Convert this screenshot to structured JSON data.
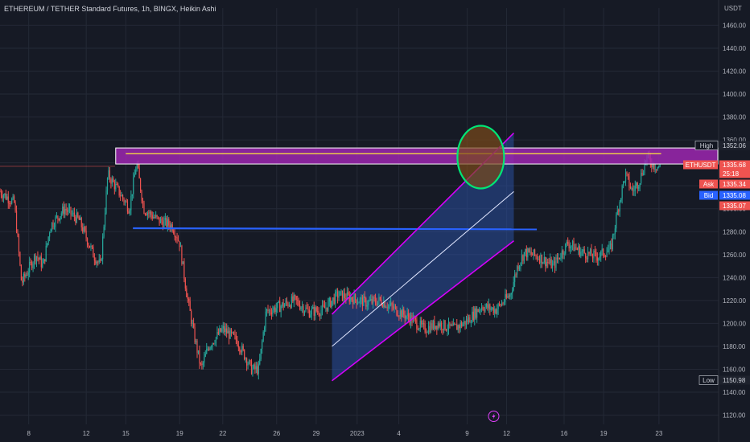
{
  "header": {
    "title": "ETHEREUM / TETHER Standard Futures, 1h, BINGX, Heikin Ashi",
    "currency": "USDT"
  },
  "colors": {
    "background": "#161a25",
    "grid": "#242936",
    "up": "#26a69a",
    "down": "#ef5350",
    "resistance_zone_fill": "#9c27b0",
    "resistance_zone_border": "#ffffff",
    "resistance_line": "#ffeb3b",
    "support_line": "#2962ff",
    "channel_border": "#d500f9",
    "channel_fill": "#2a4e9e",
    "highlight_circle": "#00e676",
    "highlight_fill": "#7a4a1a"
  },
  "chart_data": {
    "type": "candlestick",
    "title": "ETHEREUM / TETHER Standard Futures, 1h, BINGX, Heikin Ashi",
    "style": "Heikin Ashi",
    "y_axis": {
      "unit": "USDT",
      "ticks": [
        1120,
        1140,
        1160,
        1180,
        1200,
        1220,
        1240,
        1260,
        1280,
        1300,
        1320,
        1340,
        1360,
        1380,
        1400,
        1420,
        1440,
        1460
      ],
      "tick_labels": [
        "1120.00",
        "1140.00",
        "1160.00",
        "1180.00",
        "1200.00",
        "1220.00",
        "1240.00",
        "1260.00",
        "1280.00",
        "1300.00",
        "1320.00",
        "1340.00",
        "1360.00",
        "1380.00",
        "1400.00",
        "1420.00",
        "1440.00",
        "1460.00"
      ],
      "range": [
        1112,
        1475
      ]
    },
    "x_axis": {
      "tick_labels": [
        "8",
        "12",
        "15",
        "19",
        "22",
        "26",
        "29",
        "2023",
        "4",
        "9",
        "12",
        "16",
        "19",
        "23"
      ]
    },
    "grid": true,
    "price_labels": [
      {
        "name": "High",
        "value": "1352.06"
      },
      {
        "name": "ETHUSDT",
        "value": "1335.68"
      },
      {
        "name": "",
        "value": "25:18"
      },
      {
        "name": "Ask",
        "value": "1335.34"
      },
      {
        "name": "Bid",
        "value": "1335.08"
      },
      {
        "name": "",
        "value": "1335.07"
      },
      {
        "name": "Low",
        "value": "1150.98"
      }
    ],
    "high": 1352.06,
    "low": 1150.98,
    "last": 1335.68,
    "ask": 1335.34,
    "bid": 1335.08,
    "countdown": "25:18",
    "price_path": [
      [
        0,
        1315
      ],
      [
        0.02,
        1305
      ],
      [
        0.03,
        1235
      ],
      [
        0.05,
        1260
      ],
      [
        0.06,
        1250
      ],
      [
        0.07,
        1285
      ],
      [
        0.09,
        1300
      ],
      [
        0.11,
        1290
      ],
      [
        0.13,
        1260
      ],
      [
        0.14,
        1250
      ],
      [
        0.15,
        1330
      ],
      [
        0.16,
        1320
      ],
      [
        0.18,
        1300
      ],
      [
        0.19,
        1340
      ],
      [
        0.2,
        1300
      ],
      [
        0.22,
        1290
      ],
      [
        0.24,
        1285
      ],
      [
        0.25,
        1270
      ],
      [
        0.26,
        1225
      ],
      [
        0.27,
        1190
      ],
      [
        0.28,
        1160
      ],
      [
        0.29,
        1180
      ],
      [
        0.31,
        1195
      ],
      [
        0.33,
        1185
      ],
      [
        0.35,
        1160
      ],
      [
        0.36,
        1160
      ],
      [
        0.37,
        1210
      ],
      [
        0.39,
        1215
      ],
      [
        0.41,
        1220
      ],
      [
        0.43,
        1210
      ],
      [
        0.45,
        1212
      ],
      [
        0.47,
        1225
      ],
      [
        0.49,
        1222
      ],
      [
        0.51,
        1218
      ],
      [
        0.53,
        1220
      ],
      [
        0.55,
        1212
      ],
      [
        0.57,
        1205
      ],
      [
        0.59,
        1195
      ],
      [
        0.61,
        1200
      ],
      [
        0.63,
        1195
      ],
      [
        0.65,
        1202
      ],
      [
        0.67,
        1215
      ],
      [
        0.69,
        1212
      ],
      [
        0.71,
        1225
      ],
      [
        0.72,
        1250
      ],
      [
        0.73,
        1262
      ],
      [
        0.75,
        1258
      ],
      [
        0.77,
        1250
      ],
      [
        0.79,
        1270
      ],
      [
        0.81,
        1262
      ],
      [
        0.83,
        1258
      ],
      [
        0.85,
        1265
      ],
      [
        0.86,
        1300
      ],
      [
        0.87,
        1330
      ],
      [
        0.88,
        1315
      ],
      [
        0.89,
        1325
      ],
      [
        0.9,
        1345
      ],
      [
        0.91,
        1338
      ],
      [
        0.92,
        1336
      ]
    ],
    "overlays": [
      {
        "type": "rectangle",
        "name": "resistance zone",
        "y_range": [
          1339,
          1353
        ]
      },
      {
        "type": "hline",
        "name": "resistance line",
        "value": 1348
      },
      {
        "type": "hline",
        "name": "previous high level",
        "value": 1337
      },
      {
        "type": "hline",
        "name": "support line",
        "value": 1283
      },
      {
        "type": "parallel_channel",
        "name": "rising channel",
        "start": {
          "lower": 1150,
          "middle": 1180,
          "upper": 1208
        },
        "end": {
          "lower": 1272,
          "middle": 1315,
          "upper": 1366
        }
      },
      {
        "type": "ellipse",
        "name": "breakout highlight circle",
        "center_value": 1345
      },
      {
        "type": "icon",
        "name": "flash-icon"
      }
    ]
  }
}
